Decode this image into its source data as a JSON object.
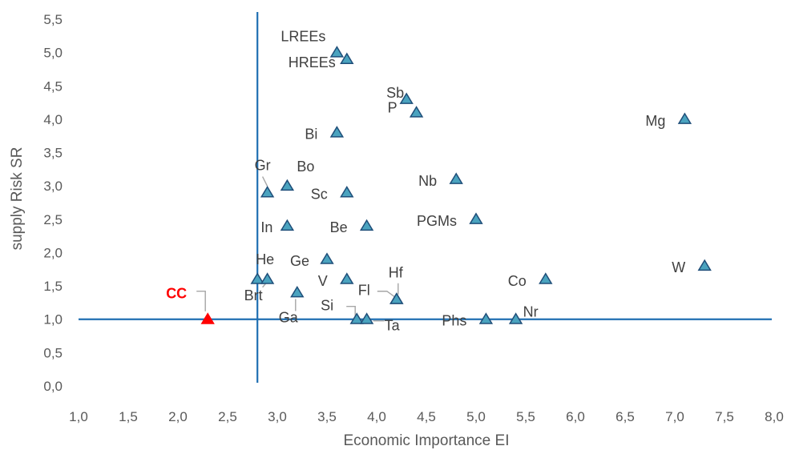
{
  "chart_data": {
    "type": "scatter",
    "xlabel": "Economic Importance EI",
    "ylabel": "supply Risk SR",
    "xlim": [
      1.0,
      8.0
    ],
    "ylim": [
      0.0,
      5.5
    ],
    "x_ticks": [
      "1,0",
      "1,5",
      "2,0",
      "2,5",
      "3,0",
      "3,5",
      "4,0",
      "4,5",
      "5,0",
      "5,5",
      "6,0",
      "6,5",
      "7,0",
      "7,5",
      "8,0"
    ],
    "y_ticks": [
      "0,0",
      "0,5",
      "1,0",
      "1,5",
      "2,0",
      "2,5",
      "3,0",
      "3,5",
      "4,0",
      "4,5",
      "5,0",
      "5,5"
    ],
    "grid": false,
    "threshold_lines": {
      "x": 2.8,
      "y": 1.0
    },
    "marker_color": "#4aa3bf",
    "marker_edge_color": "#1f4e79",
    "highlight_color": "#ff0000",
    "line_color": "#1f6fb2",
    "points": [
      {
        "label": "LREEs",
        "x": 3.6,
        "y": 5.0
      },
      {
        "label": "HREEs",
        "x": 3.7,
        "y": 4.9
      },
      {
        "label": "Sb",
        "x": 4.3,
        "y": 4.3
      },
      {
        "label": "P",
        "x": 4.4,
        "y": 4.1
      },
      {
        "label": "Mg",
        "x": 7.1,
        "y": 4.0
      },
      {
        "label": "Bi",
        "x": 3.6,
        "y": 3.8
      },
      {
        "label": "Nb",
        "x": 4.8,
        "y": 3.1
      },
      {
        "label": "Bo",
        "x": 3.1,
        "y": 3.0
      },
      {
        "label": "Gr",
        "x": 2.9,
        "y": 2.9
      },
      {
        "label": "Sc",
        "x": 3.7,
        "y": 2.9
      },
      {
        "label": "PGMs",
        "x": 5.0,
        "y": 2.5
      },
      {
        "label": "In",
        "x": 3.1,
        "y": 2.4
      },
      {
        "label": "Be",
        "x": 3.9,
        "y": 2.4
      },
      {
        "label": "Ge",
        "x": 3.5,
        "y": 1.9
      },
      {
        "label": "W",
        "x": 7.3,
        "y": 1.8
      },
      {
        "label": "He",
        "x": 2.8,
        "y": 1.6
      },
      {
        "label": "Brt",
        "x": 2.9,
        "y": 1.6
      },
      {
        "label": "V",
        "x": 3.7,
        "y": 1.6
      },
      {
        "label": "Co",
        "x": 5.7,
        "y": 1.6
      },
      {
        "label": "Ga",
        "x": 3.2,
        "y": 1.4
      },
      {
        "label": "Fl",
        "x": 4.2,
        "y": 1.3
      },
      {
        "label": "Hf",
        "x": 4.2,
        "y": 1.3
      },
      {
        "label": "Si",
        "x": 3.8,
        "y": 1.0
      },
      {
        "label": "Ta",
        "x": 3.9,
        "y": 1.0
      },
      {
        "label": "Phs",
        "x": 5.1,
        "y": 1.0
      },
      {
        "label": "Nr",
        "x": 5.4,
        "y": 1.0
      },
      {
        "label": "CC",
        "x": 2.3,
        "y": 1.0,
        "highlight": true
      }
    ]
  }
}
